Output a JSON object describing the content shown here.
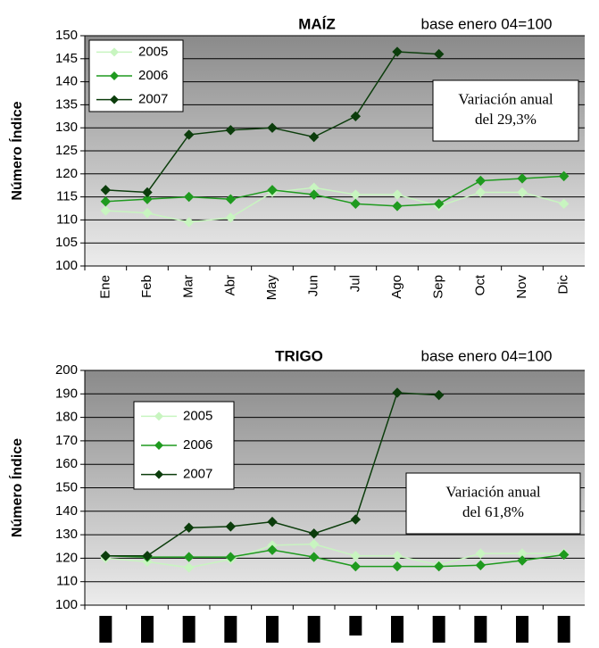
{
  "chart_data": [
    {
      "type": "line",
      "title": "MAÍZ",
      "subtitle": "base enero 04=100",
      "y_label": "Número Índice",
      "categories": [
        "Ene",
        "Feb",
        "Mar",
        "Abr",
        "May",
        "Jun",
        "Jul",
        "Ago",
        "Sep",
        "Oct",
        "Nov",
        "Dic"
      ],
      "series": [
        {
          "name": "2005",
          "color": "#c8f5c0",
          "values": [
            112,
            111.5,
            109.5,
            110.5,
            116,
            117,
            115.5,
            115.5,
            113,
            116,
            116,
            113.5
          ]
        },
        {
          "name": "2006",
          "color": "#1f9a1f",
          "values": [
            114,
            114.5,
            115,
            114.5,
            116.5,
            115.5,
            113.5,
            113,
            113.5,
            118.5,
            119,
            119.5
          ]
        },
        {
          "name": "2007",
          "color": "#0c3d0c",
          "values": [
            116.5,
            116,
            128.5,
            129.5,
            130,
            128,
            132.5,
            146.5,
            146,
            null,
            null,
            null
          ]
        }
      ],
      "ylim": [
        100,
        150
      ],
      "yticks": [
        100,
        105,
        110,
        115,
        120,
        125,
        130,
        135,
        140,
        145,
        150
      ],
      "grid": true,
      "annotation": [
        "Variación anual",
        "del 29,3%"
      ]
    },
    {
      "type": "line",
      "title": "TRIGO",
      "subtitle": "base enero 04=100",
      "y_label": "Número Índice",
      "categories": [
        null,
        null,
        null,
        null,
        null,
        null,
        null,
        null,
        null,
        null,
        null,
        null
      ],
      "series": [
        {
          "name": "2005",
          "color": "#c8f5c0",
          "values": [
            120,
            118.5,
            116,
            119.5,
            125.5,
            126,
            121,
            121,
            117,
            122,
            122,
            122
          ]
        },
        {
          "name": "2006",
          "color": "#1f9a1f",
          "values": [
            121,
            120.5,
            120.5,
            120.5,
            123.5,
            120.5,
            116.5,
            116.5,
            116.5,
            117,
            119,
            121.5
          ]
        },
        {
          "name": "2007",
          "color": "#0c3d0c",
          "values": [
            121,
            121,
            133,
            133.5,
            135.5,
            130.5,
            136.5,
            190.5,
            189.5,
            null,
            null,
            null
          ]
        }
      ],
      "ylim": [
        100,
        200
      ],
      "yticks": [
        100,
        110,
        120,
        130,
        140,
        150,
        160,
        170,
        180,
        190,
        200
      ],
      "grid": true,
      "annotation": [
        "Variación anual",
        "del 61,8%"
      ]
    }
  ]
}
